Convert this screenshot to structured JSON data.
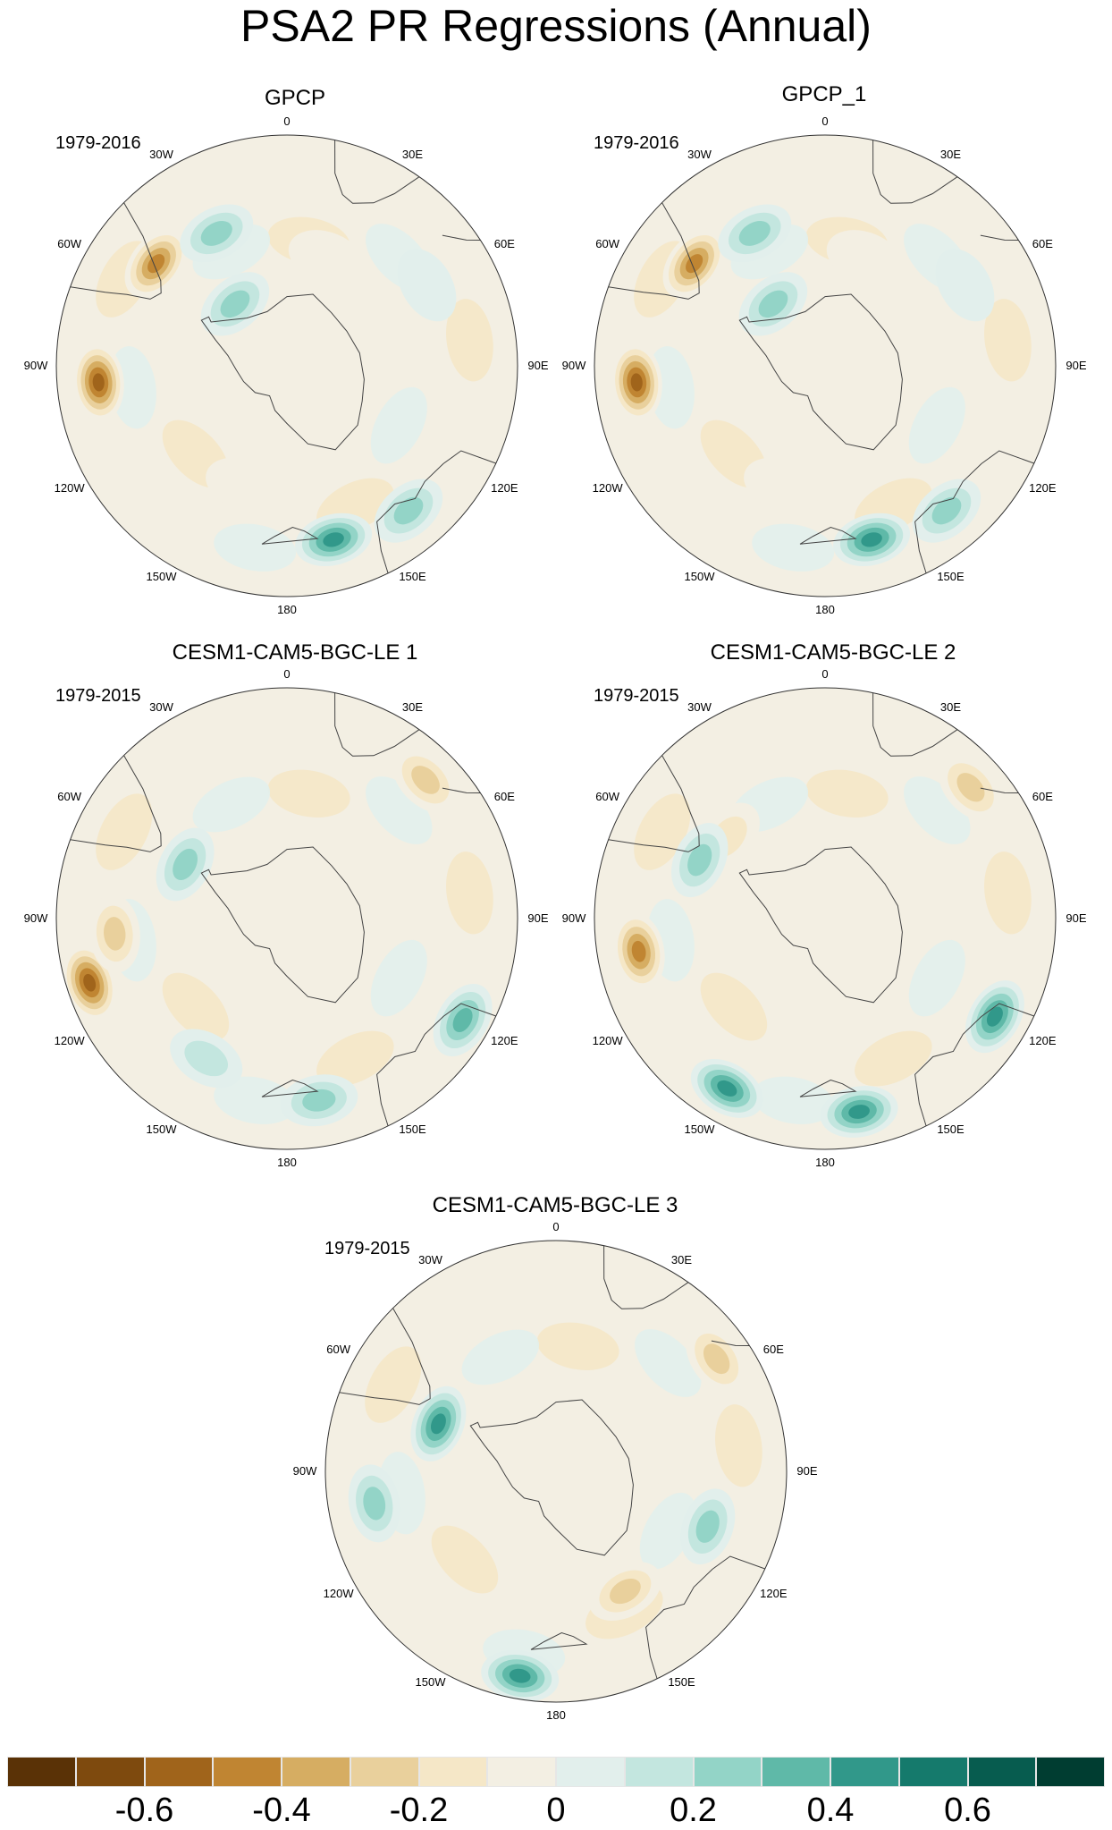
{
  "title": "PSA2 PR Regressions (Annual)",
  "panels": [
    {
      "title": "GPCP",
      "period": "1979-2016",
      "pattern": [
        {
          "lon": -95,
          "r": 0.82,
          "v": -0.55
        },
        {
          "lon": -52,
          "r": 0.72,
          "v": -0.45
        },
        {
          "lon": -28,
          "r": 0.65,
          "v": 0.3
        },
        {
          "lon": 165,
          "r": 0.78,
          "v": 0.5
        },
        {
          "lon": 140,
          "r": 0.82,
          "v": 0.35
        },
        {
          "lon": -160,
          "r": 0.55,
          "v": -0.15
        },
        {
          "lon": 20,
          "r": 0.5,
          "v": -0.1
        },
        {
          "lon": -40,
          "r": 0.35,
          "v": 0.25
        },
        {
          "lon": 60,
          "r": 0.7,
          "v": 0.15
        }
      ]
    },
    {
      "title": "GPCP_1",
      "period": "1979-2016",
      "pattern": [
        {
          "lon": -95,
          "r": 0.82,
          "v": -0.55
        },
        {
          "lon": -52,
          "r": 0.72,
          "v": -0.45
        },
        {
          "lon": -28,
          "r": 0.65,
          "v": 0.3
        },
        {
          "lon": 165,
          "r": 0.78,
          "v": 0.5
        },
        {
          "lon": 140,
          "r": 0.82,
          "v": 0.35
        },
        {
          "lon": -160,
          "r": 0.55,
          "v": -0.15
        },
        {
          "lon": 20,
          "r": 0.5,
          "v": -0.1
        },
        {
          "lon": -40,
          "r": 0.35,
          "v": 0.25
        },
        {
          "lon": 60,
          "r": 0.7,
          "v": 0.15
        }
      ]
    },
    {
      "title": "CESM1-CAM5-BGC-LE 1",
      "period": "1979-2015",
      "pattern": [
        {
          "lon": -108,
          "r": 0.9,
          "v": -0.6
        },
        {
          "lon": -95,
          "r": 0.75,
          "v": -0.3
        },
        {
          "lon": 120,
          "r": 0.88,
          "v": 0.4
        },
        {
          "lon": 170,
          "r": 0.8,
          "v": 0.35
        },
        {
          "lon": 45,
          "r": 0.85,
          "v": -0.25
        },
        {
          "lon": -62,
          "r": 0.5,
          "v": 0.35
        },
        {
          "lon": -150,
          "r": 0.7,
          "v": 0.2
        }
      ]
    },
    {
      "title": "CESM1-CAM5-BGC-LE 2",
      "period": "1979-2015",
      "pattern": [
        {
          "lon": -100,
          "r": 0.82,
          "v": -0.5
        },
        {
          "lon": 120,
          "r": 0.85,
          "v": 0.45
        },
        {
          "lon": -150,
          "r": 0.85,
          "v": 0.5
        },
        {
          "lon": 170,
          "r": 0.85,
          "v": 0.45
        },
        {
          "lon": 48,
          "r": 0.85,
          "v": -0.3
        },
        {
          "lon": -50,
          "r": 0.55,
          "v": -0.2
        },
        {
          "lon": -65,
          "r": 0.6,
          "v": 0.3
        }
      ]
    },
    {
      "title": "CESM1-CAM5-BGC-LE 3",
      "period": "1979-2015",
      "pattern": [
        {
          "lon": -100,
          "r": 0.8,
          "v": 0.35
        },
        {
          "lon": -170,
          "r": 0.9,
          "v": 0.5
        },
        {
          "lon": -68,
          "r": 0.55,
          "v": 0.45
        },
        {
          "lon": 150,
          "r": 0.6,
          "v": -0.35
        },
        {
          "lon": 55,
          "r": 0.85,
          "v": -0.25
        },
        {
          "lon": 110,
          "r": 0.7,
          "v": 0.3
        },
        {
          "lon": 80,
          "r": 0.5,
          "v": -0.15
        }
      ]
    }
  ],
  "lon_labels": [
    "0",
    "30E",
    "60E",
    "90E",
    "120E",
    "150E",
    "180",
    "150W",
    "120W",
    "90W",
    "60W",
    "30W"
  ],
  "colorbar": {
    "colors": [
      "#5a3206",
      "#7e4a0e",
      "#a0641b",
      "#c08532",
      "#d6ad62",
      "#e9d09c",
      "#f5e7c7",
      "#f3efe3",
      "#e2efec",
      "#c3e6df",
      "#93d4c7",
      "#5fb9a8",
      "#31988a",
      "#157a6c",
      "#075c4f",
      "#003d31"
    ],
    "labels": [
      "-0.6",
      "-0.4",
      "-0.2",
      "0",
      "0.2",
      "0.4",
      "0.6"
    ]
  }
}
